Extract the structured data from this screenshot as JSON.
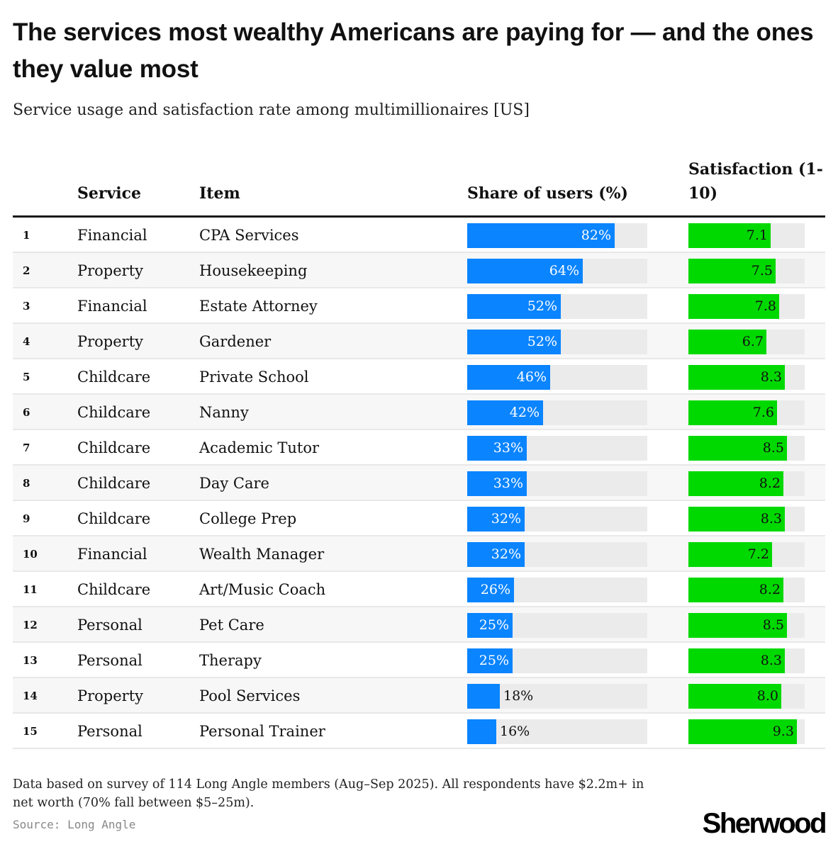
{
  "header": {
    "title": "The services most wealthy Americans are paying for — and the ones they value most",
    "subtitle": "Service usage and satisfaction rate among multimillionaires [US]"
  },
  "table": {
    "columns": {
      "rank": "",
      "service": "Service",
      "item": "Item",
      "share": "Share of users (%)",
      "satisfaction": "Satisfaction (1-10)"
    }
  },
  "colors": {
    "share_bar": "#0a84ff",
    "satisfaction_bar": "#00d900",
    "track": "#ebebeb"
  },
  "chart_data": {
    "type": "table",
    "title": "The services most wealthy Americans are paying for — and the ones they value most",
    "subtitle": "Service usage and satisfaction rate among multimillionaires [US]",
    "share_range": [
      0,
      100
    ],
    "satisfaction_range": [
      0,
      10
    ],
    "rows": [
      {
        "rank": "1",
        "service": "Financial",
        "item": "CPA Services",
        "share": 82,
        "share_label": "82%",
        "satisfaction": 7.1,
        "satisfaction_label": "7.1"
      },
      {
        "rank": "2",
        "service": "Property",
        "item": "Housekeeping",
        "share": 64,
        "share_label": "64%",
        "satisfaction": 7.5,
        "satisfaction_label": "7.5"
      },
      {
        "rank": "3",
        "service": "Financial",
        "item": "Estate Attorney",
        "share": 52,
        "share_label": "52%",
        "satisfaction": 7.8,
        "satisfaction_label": "7.8"
      },
      {
        "rank": "4",
        "service": "Property",
        "item": "Gardener",
        "share": 52,
        "share_label": "52%",
        "satisfaction": 6.7,
        "satisfaction_label": "6.7"
      },
      {
        "rank": "5",
        "service": "Childcare",
        "item": "Private School",
        "share": 46,
        "share_label": "46%",
        "satisfaction": 8.3,
        "satisfaction_label": "8.3"
      },
      {
        "rank": "6",
        "service": "Childcare",
        "item": "Nanny",
        "share": 42,
        "share_label": "42%",
        "satisfaction": 7.6,
        "satisfaction_label": "7.6"
      },
      {
        "rank": "7",
        "service": "Childcare",
        "item": "Academic Tutor",
        "share": 33,
        "share_label": "33%",
        "satisfaction": 8.5,
        "satisfaction_label": "8.5"
      },
      {
        "rank": "8",
        "service": "Childcare",
        "item": "Day Care",
        "share": 33,
        "share_label": "33%",
        "satisfaction": 8.2,
        "satisfaction_label": "8.2"
      },
      {
        "rank": "9",
        "service": "Childcare",
        "item": "College Prep",
        "share": 32,
        "share_label": "32%",
        "satisfaction": 8.3,
        "satisfaction_label": "8.3"
      },
      {
        "rank": "10",
        "service": "Financial",
        "item": "Wealth Manager",
        "share": 32,
        "share_label": "32%",
        "satisfaction": 7.2,
        "satisfaction_label": "7.2"
      },
      {
        "rank": "11",
        "service": "Childcare",
        "item": "Art/Music Coach",
        "share": 26,
        "share_label": "26%",
        "satisfaction": 8.2,
        "satisfaction_label": "8.2"
      },
      {
        "rank": "12",
        "service": "Personal",
        "item": "Pet Care",
        "share": 25,
        "share_label": "25%",
        "satisfaction": 8.5,
        "satisfaction_label": "8.5"
      },
      {
        "rank": "13",
        "service": "Personal",
        "item": "Therapy",
        "share": 25,
        "share_label": "25%",
        "satisfaction": 8.3,
        "satisfaction_label": "8.3"
      },
      {
        "rank": "14",
        "service": "Property",
        "item": "Pool Services",
        "share": 18,
        "share_label": "18%",
        "satisfaction": 8.0,
        "satisfaction_label": "8.0"
      },
      {
        "rank": "15",
        "service": "Personal",
        "item": "Personal Trainer",
        "share": 16,
        "share_label": "16%",
        "satisfaction": 9.3,
        "satisfaction_label": "9.3"
      }
    ]
  },
  "footer": {
    "note": "Data based on survey of 114 Long Angle members (Aug–Sep 2025). All respondents have $2.2m+ in net worth (70% fall between $5–25m).",
    "source": "Source: Long Angle",
    "brand": "Sherwood"
  }
}
